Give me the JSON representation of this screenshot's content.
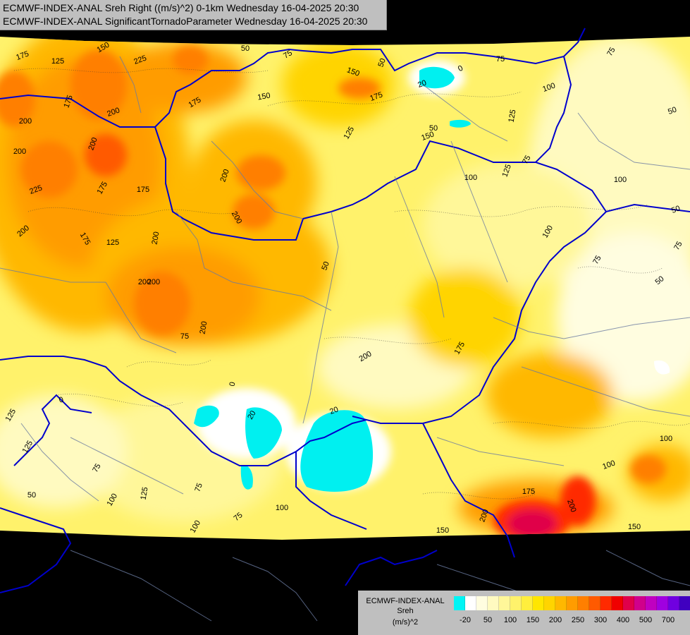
{
  "title": {
    "line1": "ECMWF-INDEX-ANAL Sreh Right ((m/s)^2) 0-1km Wednesday 16-04-2025 20:30",
    "line2": "ECMWF-INDEX-ANAL SignificantTornadoParameter Wednesday 16-04-2025 20:30"
  },
  "legend": {
    "line1": "ECMWF-INDEX-ANAL",
    "line2": "Sreh",
    "line3": "(m/s)^2",
    "ticks": [
      "-20",
      "50",
      "100",
      "150",
      "200",
      "250",
      "300",
      "400",
      "500",
      "700"
    ],
    "colors": [
      "#00f5f5",
      "#ffffff",
      "#fffde0",
      "#fffac0",
      "#fff799",
      "#fff26b",
      "#ffee3d",
      "#ffe600",
      "#ffd400",
      "#ffb800",
      "#ff9c00",
      "#ff7f00",
      "#ff5a00",
      "#ff2a00",
      "#f00000",
      "#e0004a",
      "#d0008c",
      "#c000c0",
      "#a000e0",
      "#7000e0",
      "#4000c0",
      "#1a0090"
    ]
  },
  "map": {
    "contour_labels": [
      "175",
      "125",
      "150",
      "225",
      "175",
      "200",
      "50",
      "75",
      "50",
      "75",
      "20",
      "0",
      "50",
      "100",
      "150",
      "175",
      "150",
      "125",
      "125",
      "50",
      "75",
      "200",
      "200",
      "200",
      "175",
      "225",
      "175",
      "200",
      "200",
      "100",
      "50",
      "100",
      "150",
      "125",
      "175",
      "200",
      "175",
      "75",
      "200",
      "200",
      "200",
      "50",
      "175",
      "75",
      "50",
      "200",
      "0",
      "20",
      "20",
      "125",
      "0",
      "125",
      "75",
      "100",
      "125",
      "75",
      "50",
      "75",
      "100",
      "150",
      "75",
      "100",
      "175",
      "100",
      "200",
      "100",
      "200",
      "200",
      "75",
      "150",
      "100",
      "125"
    ]
  }
}
